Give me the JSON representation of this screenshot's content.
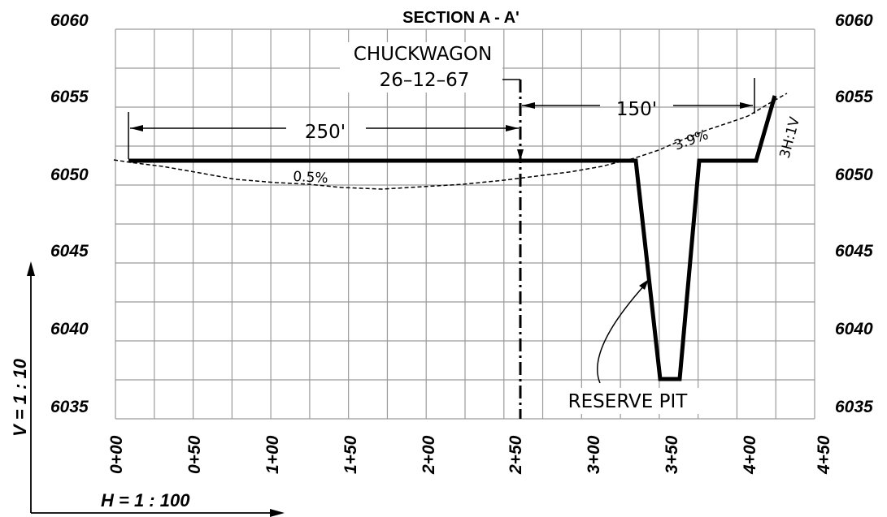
{
  "title": "SECTION A - A'",
  "elevations_left": [
    "6060",
    "6055",
    "6050",
    "6045",
    "6040",
    "6035"
  ],
  "elevations_right": [
    "6060",
    "6055",
    "6050",
    "6045",
    "6040",
    "6035"
  ],
  "stations": [
    "0+00",
    "0+50",
    "1+00",
    "1+50",
    "2+00",
    "2+50",
    "3+00",
    "3+50",
    "4+00",
    "4+50"
  ],
  "well": {
    "name": "CHUCKWAGON",
    "number": "26–12–67"
  },
  "dim_left": "250'",
  "dim_right": "150'",
  "slope_left": "0.5%",
  "slope_right": "3.9%",
  "cut_slope": "3H:1V",
  "pit_label": "RESERVE  PIT",
  "v_scale": "V = 1 : 10",
  "h_scale": "H = 1 : 100"
}
